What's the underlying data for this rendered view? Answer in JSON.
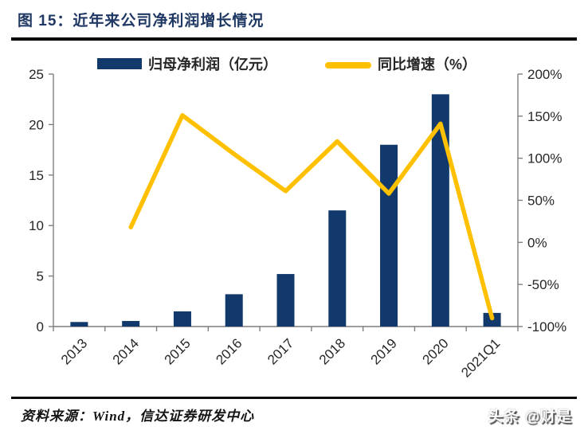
{
  "figure": {
    "title": "图 15：近年来公司净利润增长情况",
    "source": "资料来源：Wind，信达证券研发中心",
    "watermark": "头条 @财是"
  },
  "chart_data": {
    "type": "bar+line combo",
    "categories": [
      "2013",
      "2014",
      "2015",
      "2016",
      "2017",
      "2018",
      "2019",
      "2020",
      "2021Q1"
    ],
    "series": [
      {
        "name": "归母净利润（亿元）",
        "type": "bar",
        "axis": "left",
        "color": "#12396b",
        "values": [
          0.45,
          0.55,
          1.5,
          3.2,
          5.2,
          11.5,
          18.0,
          23.0,
          1.35
        ]
      },
      {
        "name": "同比增速（%）",
        "type": "line",
        "axis": "right",
        "color": "#ffc000",
        "values": [
          null,
          18,
          151,
          105,
          61,
          120,
          58,
          141,
          -90
        ]
      }
    ],
    "left_axis": {
      "min": 0,
      "max": 25,
      "step": 5,
      "tick_labels": [
        "0",
        "5",
        "10",
        "15",
        "20",
        "25"
      ]
    },
    "right_axis": {
      "min": -100,
      "max": 200,
      "step": 50,
      "tick_labels": [
        "-100%",
        "-50%",
        "0%",
        "50%",
        "100%",
        "150%",
        "200%"
      ]
    },
    "legend_position": "top",
    "grid": false,
    "axis_color": "#7f7f7f",
    "tick_label_color": "#262626"
  }
}
